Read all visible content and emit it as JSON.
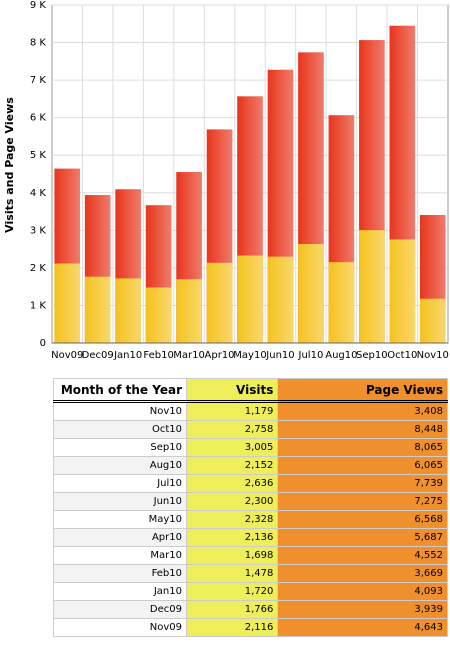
{
  "chart_data": {
    "type": "bar",
    "y_label": "Visits and Page Views",
    "categories": [
      "Nov09",
      "Dec09",
      "Jan10",
      "Feb10",
      "Mar10",
      "Apr10",
      "May10",
      "Jun10",
      "Jul10",
      "Aug10",
      "Sep10",
      "Oct10",
      "Nov10"
    ],
    "series": [
      {
        "name": "Page Views",
        "color": "#e8351c",
        "values": [
          4643,
          3939,
          4093,
          3669,
          4552,
          5687,
          6568,
          7275,
          7739,
          6065,
          8065,
          8448,
          3408
        ]
      },
      {
        "name": "Visits",
        "color": "#f5c21e",
        "values": [
          2116,
          1766,
          1720,
          1478,
          1698,
          2136,
          2328,
          2300,
          2636,
          2152,
          3005,
          2758,
          1179
        ]
      }
    ],
    "ylim": [
      0,
      9000
    ],
    "yticks": [
      0,
      {
        "value": 1000,
        "label": "1 K"
      },
      {
        "value": 2000,
        "label": "2 K"
      },
      {
        "value": 3000,
        "label": "3 K"
      },
      {
        "value": 4000,
        "label": "4 K"
      },
      {
        "value": 5000,
        "label": "5 K"
      },
      {
        "value": 6000,
        "label": "6 K"
      },
      {
        "value": 7000,
        "label": "7 K"
      },
      {
        "value": 8000,
        "label": "8 K"
      },
      {
        "value": 9000,
        "label": "9 K"
      }
    ],
    "grid": true
  },
  "table": {
    "columns": [
      "Month of the Year",
      "Visits",
      "Page Views"
    ],
    "rows": [
      [
        "Nov10",
        "1,179",
        "3,408"
      ],
      [
        "Oct10",
        "2,758",
        "8,448"
      ],
      [
        "Sep10",
        "3,005",
        "8,065"
      ],
      [
        "Aug10",
        "2,152",
        "6,065"
      ],
      [
        "Jul10",
        "2,636",
        "7,739"
      ],
      [
        "Jun10",
        "2,300",
        "7,275"
      ],
      [
        "May10",
        "2,328",
        "6,568"
      ],
      [
        "Apr10",
        "2,136",
        "5,687"
      ],
      [
        "Mar10",
        "1,698",
        "4,552"
      ],
      [
        "Feb10",
        "1,478",
        "3,669"
      ],
      [
        "Jan10",
        "1,720",
        "4,093"
      ],
      [
        "Dec09",
        "1,766",
        "3,939"
      ],
      [
        "Nov09",
        "2,116",
        "4,643"
      ]
    ]
  }
}
